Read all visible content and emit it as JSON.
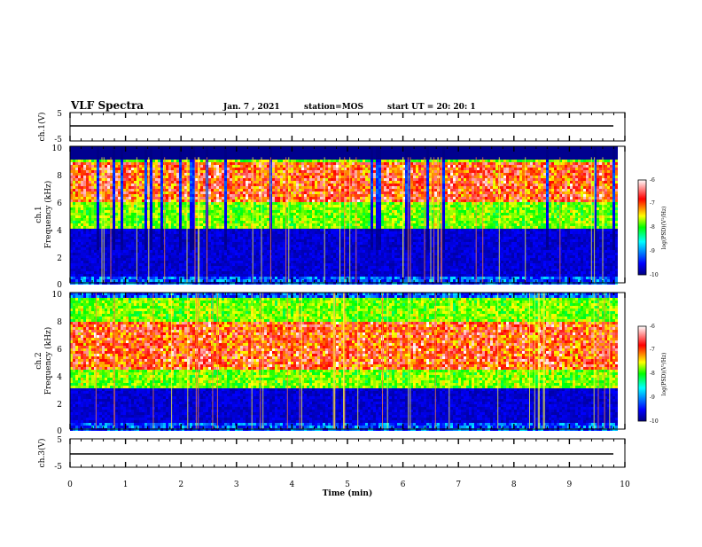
{
  "header": {
    "title": "VLF Spectra",
    "date": "Jan. 7 , 2021",
    "station": "station=MOS",
    "start_ut": "start UT =  20: 20: 1"
  },
  "x_axis": {
    "label": "Time (min)",
    "ticks": [
      "0",
      "1",
      "2",
      "3",
      "4",
      "5",
      "6",
      "7",
      "8",
      "9",
      "10"
    ]
  },
  "panels": {
    "ch1_wave": {
      "ylabel": "ch.1(V)",
      "ticks": [
        "5",
        "-5"
      ]
    },
    "ch1_spec": {
      "ylabel_line1": "ch.1",
      "ylabel_line2": "Frequency (kHz)",
      "ticks": [
        "10",
        "8",
        "6",
        "4",
        "2",
        "0"
      ]
    },
    "ch2_spec": {
      "ylabel_line1": "ch.2",
      "ylabel_line2": "Frequency (kHz)",
      "ticks": [
        "10",
        "8",
        "6",
        "4",
        "2",
        "0"
      ]
    },
    "ch3_wave": {
      "ylabel": "ch.3(V)",
      "ticks": [
        "5",
        "-5"
      ]
    }
  },
  "colorbars": [
    {
      "label": "log(PSD)(V²/Hz)",
      "ticks": [
        "-6",
        "-7",
        "-8",
        "-9",
        "-10"
      ]
    },
    {
      "label": "log(PSD)(V²/Hz)",
      "ticks": [
        "-6",
        "-7",
        "-8",
        "-9",
        "-10"
      ]
    }
  ],
  "chart_data": {
    "type": "heatmap",
    "title": "VLF Spectra",
    "xlabel": "Time (min)",
    "xlim": [
      0,
      10
    ],
    "data_extent_min": 9.85,
    "colormap": [
      "#000080",
      "#0000ff",
      "#00ffff",
      "#00ff00",
      "#ffff00",
      "#ff0000",
      "#ffffff"
    ],
    "color_scale": {
      "label": "log(PSD)(V²/Hz)",
      "min": -10,
      "max": -6
    },
    "series": [
      {
        "name": "ch.1",
        "ylabel": "Frequency (kHz)",
        "ylim": [
          0,
          10
        ],
        "dominant_band_khz": [
          4,
          9.2
        ],
        "peak_band_khz": [
          6,
          9
        ],
        "quiet_band_khz": [
          0.5,
          4
        ],
        "top_edge_khz": 9.2
      },
      {
        "name": "ch.2",
        "ylabel": "Frequency (kHz)",
        "ylim": [
          0,
          10
        ],
        "dominant_band_khz": [
          3,
          9.8
        ],
        "peak_band_khz": [
          4.5,
          8
        ],
        "quiet_band_khz": [
          0.5,
          3
        ]
      }
    ],
    "waveforms": [
      {
        "name": "ch.1(V)",
        "ylim": [
          -5,
          5
        ],
        "level": 0
      },
      {
        "name": "ch.3(V)",
        "ylim": [
          -5,
          5
        ],
        "level": 0
      }
    ]
  }
}
